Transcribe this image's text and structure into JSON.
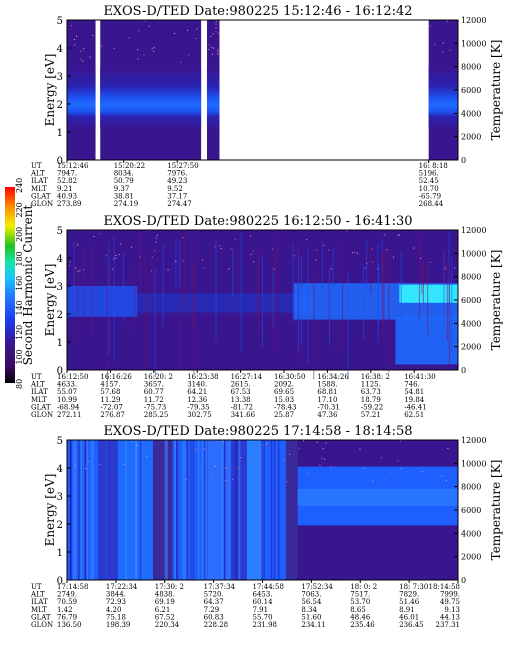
{
  "colors": {
    "background_band": "#3a1590",
    "dense_band": "#1e5fff",
    "bright_band": "#32e6ff",
    "gap": "#ffffff"
  },
  "colorbar": {
    "label": "Second Harmonic Current",
    "ticks": [
      "80",
      "100",
      "120",
      "140",
      "160",
      "180",
      "200",
      "220",
      "240"
    ],
    "stops": [
      "#000000",
      "#3a0a5c",
      "#3a1590",
      "#1c3cf0",
      "#1e78ff",
      "#19c8ff",
      "#14e6a0",
      "#20c020",
      "#f0f000",
      "#ff8c00",
      "#ff0000"
    ]
  },
  "chart_data": [
    {
      "type": "heatmap",
      "title": "EXOS-D/TED   Date:980225   15:12:46 - 16:12:42",
      "ylabel": "Energy [eV]",
      "ylabel_right": "Temperature [K]",
      "ylim": [
        0,
        5
      ],
      "yticks": [
        "0",
        "1",
        "2",
        "3",
        "4",
        "5"
      ],
      "y2lim": [
        0,
        12000
      ],
      "y2ticks": [
        "0",
        "2000",
        "4000",
        "6000",
        "8000",
        "10000",
        "12000"
      ],
      "data_spans": [
        [
          0.0,
          0.073
        ],
        [
          0.085,
          0.343
        ],
        [
          0.358,
          0.39
        ],
        [
          0.925,
          1.0
        ]
      ],
      "ephemeris": {
        "labels": [
          "UT",
          "ALT",
          "ILAT",
          "MLT",
          "GLAT",
          "GLON"
        ],
        "columns": [
          {
            "pos": 0.0,
            "values": [
              "15:12:46",
              "7947.",
              "52.82",
              "9.21",
              "40.93",
              "273.89"
            ]
          },
          {
            "pos": 0.145,
            "values": [
              "15:20:22",
              "8034.",
              "50.79",
              "9.37",
              "38.81",
              "274.19"
            ]
          },
          {
            "pos": 0.282,
            "values": [
              "15:27:50",
              "7976.",
              "49.23",
              "9.52",
              "37.17",
              "274.47"
            ]
          },
          {
            "pos": 0.925,
            "values": [
              "16: 8:18",
              "5196.",
              "52.45",
              "10.70",
              "-65.79",
              "268.44"
            ]
          }
        ]
      }
    },
    {
      "type": "heatmap",
      "title": "EXOS-D/TED   Date:980225   16:12:50 - 16:41:30",
      "ylabel": "Energy [eV]",
      "ylabel_right": "Temperature [K]",
      "ylim": [
        0,
        5
      ],
      "yticks": [
        "0",
        "1",
        "2",
        "3",
        "4",
        "5"
      ],
      "y2lim": [
        0,
        12000
      ],
      "y2ticks": [
        "0",
        "2000",
        "4000",
        "6000",
        "8000",
        "10000",
        "12000"
      ],
      "data_spans": [
        [
          0.0,
          1.0
        ]
      ],
      "ephemeris": {
        "labels": [
          "UT",
          "ALT",
          "ILAT",
          "MLT",
          "GLAT",
          "GLON"
        ],
        "columns": [
          {
            "pos": 0.0,
            "values": [
              "16:12:50",
              "4633.",
              "55.07",
              "10.99",
              "-68.94",
              "272.11"
            ]
          },
          {
            "pos": 0.111,
            "values": [
              "16:16:26",
              "4157.",
              "57.68",
              "11.29",
              "-72.07",
              "276.87"
            ]
          },
          {
            "pos": 0.222,
            "values": [
              "16:20: 2",
              "3657.",
              "60.77",
              "11.72",
              "-75.73",
              "285.25"
            ]
          },
          {
            "pos": 0.333,
            "values": [
              "16:23:38",
              "3140.",
              "64.21",
              "12.36",
              "-79.35",
              "302.75"
            ]
          },
          {
            "pos": 0.444,
            "values": [
              "16:27:14",
              "2615.",
              "67.53",
              "13.38",
              "-81.72",
              "341.66"
            ]
          },
          {
            "pos": 0.555,
            "values": [
              "16:30:50",
              "2092.",
              "69.65",
              "15.03",
              "-78.43",
              "25.87"
            ]
          },
          {
            "pos": 0.666,
            "values": [
              "16:34:26",
              "1588.",
              "68.81",
              "17.10",
              "-70.31",
              "47.36"
            ]
          },
          {
            "pos": 0.777,
            "values": [
              "16:38: 2",
              "1125.",
              "63.73",
              "18.79",
              "-59.22",
              "57.21"
            ]
          },
          {
            "pos": 0.888,
            "values": [
              "16:41:30",
              "746.",
              "54.81",
              "19.84",
              "-46.41",
              "62.51"
            ]
          }
        ]
      }
    },
    {
      "type": "heatmap",
      "title": "EXOS-D/TED   Date:980225   17:14:58 - 18:14:58",
      "ylabel": "Energy [eV]",
      "ylabel_right": "Temperature [K]",
      "ylim": [
        0,
        5
      ],
      "yticks": [
        "0",
        "1",
        "2",
        "3",
        "4",
        "5"
      ],
      "y2lim": [
        0,
        12000
      ],
      "y2ticks": [
        "0",
        "2000",
        "4000",
        "6000",
        "8000",
        "10000",
        "12000"
      ],
      "data_spans": [
        [
          0.0,
          1.0
        ]
      ],
      "ephemeris": {
        "labels": [
          "UT",
          "ALT",
          "ILAT",
          "MLT",
          "GLAT",
          "GLON"
        ],
        "columns": [
          {
            "pos": 0.0,
            "values": [
              "17:14:58",
              "2749.",
              "70.59",
              "1.42",
              "76.79",
              "136.50"
            ]
          },
          {
            "pos": 0.125,
            "values": [
              "17:22:34",
              "3844.",
              "72.93",
              "4.20",
              "75.18",
              "198.39"
            ]
          },
          {
            "pos": 0.25,
            "values": [
              "17:30: 2",
              "4838.",
              "69.19",
              "6.21",
              "67.52",
              "220.34"
            ]
          },
          {
            "pos": 0.375,
            "values": [
              "17:37:34",
              "5720.",
              "64.37",
              "7.29",
              "60.83",
              "228.28"
            ]
          },
          {
            "pos": 0.5,
            "values": [
              "17:44:58",
              "6453.",
              "60.14",
              "7.91",
              "55.70",
              "231.98"
            ]
          },
          {
            "pos": 0.625,
            "values": [
              "17:52:34",
              "7063.",
              "56.54",
              "8.34",
              "51.60",
              "234.11"
            ]
          },
          {
            "pos": 0.75,
            "values": [
              "18: 0: 2",
              "7517.",
              "53.70",
              "8.65",
              "48.46",
              "235.46"
            ]
          },
          {
            "pos": 0.875,
            "values": [
              "18: 7:30",
              "7829.",
              "51.46",
              "8.91",
              "46.01",
              "236.45"
            ]
          },
          {
            "pos": 1.0,
            "values": [
              "18:14:58",
              "7999.",
              "49.75",
              "9.13",
              "44.13",
              "237.31"
            ]
          }
        ]
      }
    }
  ]
}
